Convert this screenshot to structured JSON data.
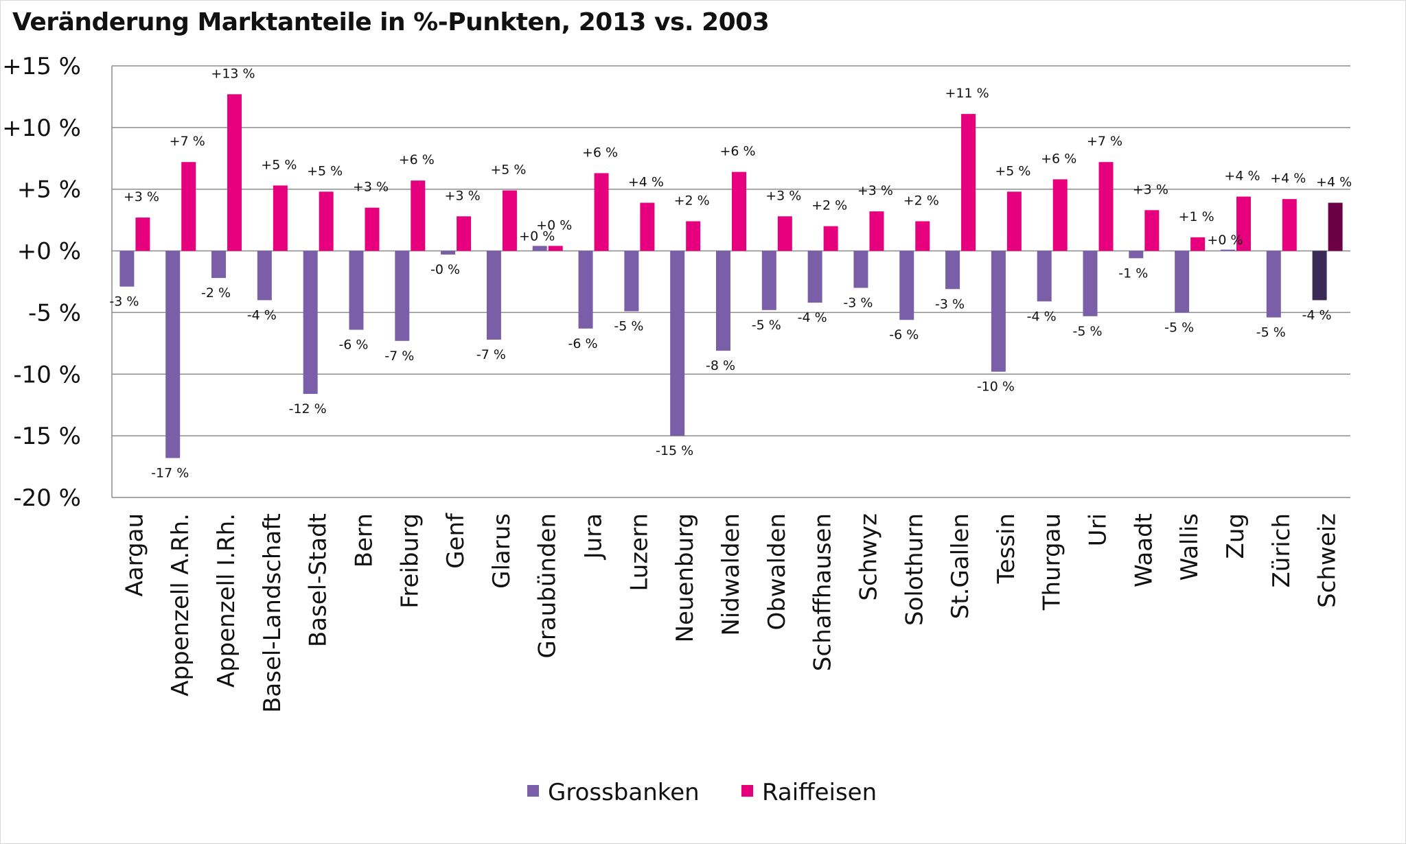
{
  "chart_data": {
    "type": "bar",
    "title": "Veränderung Marktanteile in %-Punkten, 2013 vs. 2003",
    "xlabel": "",
    "ylabel": "",
    "ylim": [
      -20,
      15
    ],
    "yticks": [
      15,
      10,
      5,
      0,
      -5,
      -10,
      -15,
      -20
    ],
    "ytick_labels": [
      "+15 %",
      "+10 %",
      "+5 %",
      "+0 %",
      "-5 %",
      "-10 %",
      "-15 %",
      "-20 %"
    ],
    "grid": true,
    "legend_position": "bottom",
    "categories": [
      "Aargau",
      "Appenzell A.Rh.",
      "Appenzell I.Rh.",
      "Basel-Landschaft",
      "Basel-Stadt",
      "Bern",
      "Freiburg",
      "Genf",
      "Glarus",
      "Graubünden",
      "Jura",
      "Luzern",
      "Neuenburg",
      "Nidwalden",
      "Obwalden",
      "Schaffhausen",
      "Schwyz",
      "Solothurn",
      "St.Gallen",
      "Tessin",
      "Thurgau",
      "Uri",
      "Waadt",
      "Wallis",
      "Zug",
      "Zürich",
      "Schweiz"
    ],
    "series": [
      {
        "name": "Grossbanken",
        "color": "#7B5EA8",
        "highlight_color": "#3B2A55",
        "values": [
          -2.9,
          -16.8,
          -2.2,
          -4.0,
          -11.6,
          -6.4,
          -7.3,
          -0.3,
          -7.2,
          0.4,
          -6.3,
          -4.9,
          -15.0,
          -8.1,
          -4.8,
          -4.2,
          -3.0,
          -5.6,
          -3.1,
          -9.8,
          -4.1,
          -5.3,
          -0.6,
          -5.0,
          0.1,
          -5.4,
          -4.0
        ],
        "labels": [
          "-3 %",
          "-17 %",
          "-2 %",
          "-4 %",
          "-12 %",
          "-6 %",
          "-7 %",
          "-0 %",
          "-7 %",
          "+0 %",
          "-6 %",
          "-5 %",
          "-15 %",
          "-8 %",
          "-5 %",
          "-4 %",
          "-3 %",
          "-6 %",
          "-3 %",
          "-10 %",
          "-4 %",
          "-5 %",
          "-1 %",
          "-5 %",
          "+0 %",
          "-5 %",
          "-4 %"
        ]
      },
      {
        "name": "Raiffeisen",
        "color": "#E6007E",
        "highlight_color": "#6B0044",
        "values": [
          2.7,
          7.2,
          12.7,
          5.3,
          4.8,
          3.5,
          5.7,
          2.8,
          4.9,
          0.4,
          6.3,
          3.9,
          2.4,
          6.4,
          2.8,
          2.0,
          3.2,
          2.4,
          11.1,
          4.8,
          5.8,
          7.2,
          3.3,
          1.1,
          4.4,
          4.2,
          3.9
        ],
        "labels": [
          "+3 %",
          "+7 %",
          "+13 %",
          "+5 %",
          "+5 %",
          "+3 %",
          "+6 %",
          "+3 %",
          "+5 %",
          "+0 %",
          "+6 %",
          "+4 %",
          "+2 %",
          "+6 %",
          "+3 %",
          "+2 %",
          "+3 %",
          "+2 %",
          "+11 %",
          "+5 %",
          "+6 %",
          "+7 %",
          "+3 %",
          "+1 %",
          "+4 %",
          "+4 %",
          "+4 %"
        ]
      }
    ],
    "highlight_category": "Schweiz"
  }
}
